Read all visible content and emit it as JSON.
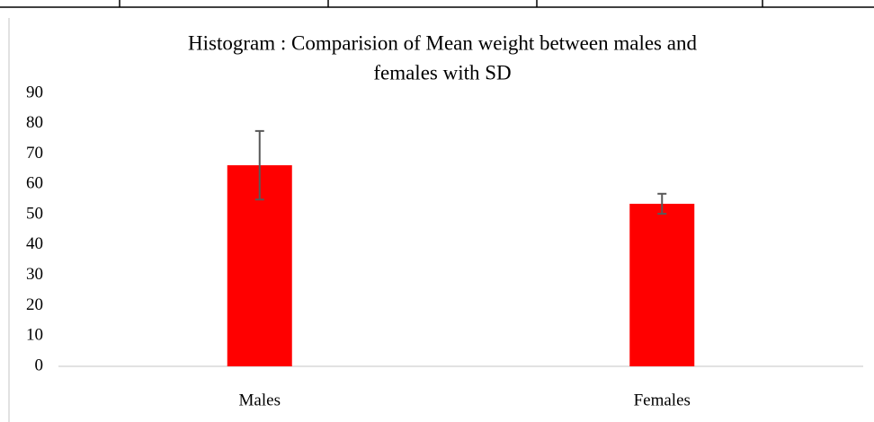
{
  "chart_data": {
    "type": "bar",
    "title": [
      "Histogram : Comparision of  Mean  weight between males and",
      "females with SD"
    ],
    "categories": [
      "Males",
      "Females"
    ],
    "values": [
      66.3,
      53.6
    ],
    "errors": [
      11.3,
      3.3
    ],
    "color": "#ff0000",
    "error_color": "#595959",
    "ylim": [
      0,
      90
    ],
    "yticks": [
      0,
      10,
      20,
      30,
      40,
      50,
      60,
      70,
      80,
      90
    ],
    "grid": false
  }
}
